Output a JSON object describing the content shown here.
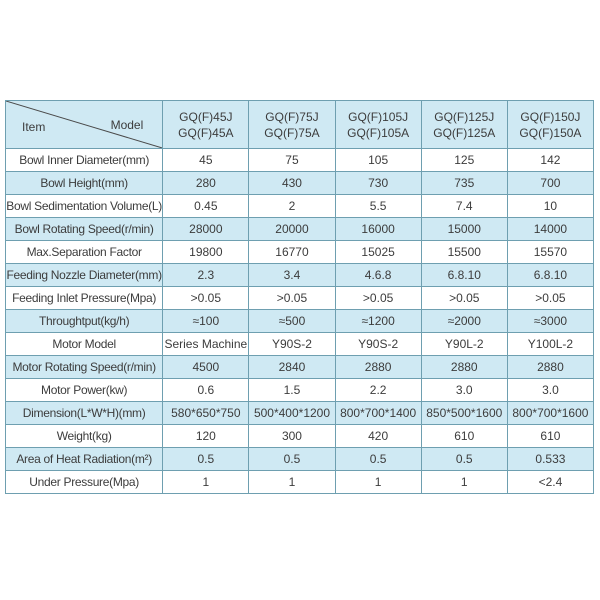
{
  "chart_data": {
    "type": "table",
    "title": "Centrifuge model specification table",
    "corner_item_label": "Item",
    "corner_model_label": "Model",
    "column_headers": [
      [
        "GQ(F)45J",
        "GQ(F)45A"
      ],
      [
        "GQ(F)75J",
        "GQ(F)75A"
      ],
      [
        "GQ(F)105J",
        "GQ(F)105A"
      ],
      [
        "GQ(F)125J",
        "GQ(F)125A"
      ],
      [
        "GQ(F)150J",
        "GQ(F)150A"
      ]
    ],
    "rows": [
      {
        "label": "Bowl Inner Diameter(mm)",
        "values": [
          "45",
          "75",
          "105",
          "125",
          "142"
        ]
      },
      {
        "label": "Bowl Height(mm)",
        "values": [
          "280",
          "430",
          "730",
          "735",
          "700"
        ]
      },
      {
        "label": "Bowl Sedimentation Volume(L)",
        "values": [
          "0.45",
          "2",
          "5.5",
          "7.4",
          "10"
        ]
      },
      {
        "label": "Bowl Rotating Speed(r/min)",
        "values": [
          "28000",
          "20000",
          "16000",
          "15000",
          "14000"
        ]
      },
      {
        "label": "Max.Separation Factor",
        "values": [
          "19800",
          "16770",
          "15025",
          "15500",
          "15570"
        ]
      },
      {
        "label": "Feeding Nozzle Diameter(mm)",
        "values": [
          "2.3",
          "3.4",
          "4.6.8",
          "6.8.10",
          "6.8.10"
        ]
      },
      {
        "label": "Feeding Inlet Pressure(Mpa)",
        "values": [
          ">0.05",
          ">0.05",
          ">0.05",
          ">0.05",
          ">0.05"
        ]
      },
      {
        "label": "Throughtput(kg/h)",
        "values": [
          "≈100",
          "≈500",
          "≈1200",
          "≈2000",
          "≈3000"
        ]
      },
      {
        "label": "Motor Model",
        "values": [
          "Series Machine",
          "Y90S-2",
          "Y90S-2",
          "Y90L-2",
          "Y100L-2"
        ]
      },
      {
        "label": "Motor Rotating Speed(r/min)",
        "values": [
          "4500",
          "2840",
          "2880",
          "2880",
          "2880"
        ]
      },
      {
        "label": "Motor Power(kw)",
        "values": [
          "0.6",
          "1.5",
          "2.2",
          "3.0",
          "3.0"
        ]
      },
      {
        "label": "Dimension(L*W*H)(mm)",
        "values": [
          "580*650*750",
          "500*400*1200",
          "800*700*1400",
          "850*500*1600",
          "800*700*1600"
        ]
      },
      {
        "label": "Weight(kg)",
        "values": [
          "120",
          "300",
          "420",
          "610",
          "610"
        ]
      },
      {
        "label": "Area of Heat Radiation(m²)",
        "values": [
          "0.5",
          "0.5",
          "0.5",
          "0.5",
          "0.533"
        ]
      },
      {
        "label": "Under Pressure(Mpa)",
        "values": [
          "1",
          "1",
          "1",
          "1",
          "<2.4"
        ]
      }
    ],
    "layout": {
      "grid": "on",
      "zebra_striping": true,
      "header_position": "top"
    },
    "colors": {
      "background": "#ffffff",
      "row_alt_fill": "#cfe9f3",
      "header_fill": "#cfe9f3",
      "border": "#6e9fb0",
      "text": "#3c3c3c",
      "diagonal_line": "#4a4a4a"
    }
  }
}
